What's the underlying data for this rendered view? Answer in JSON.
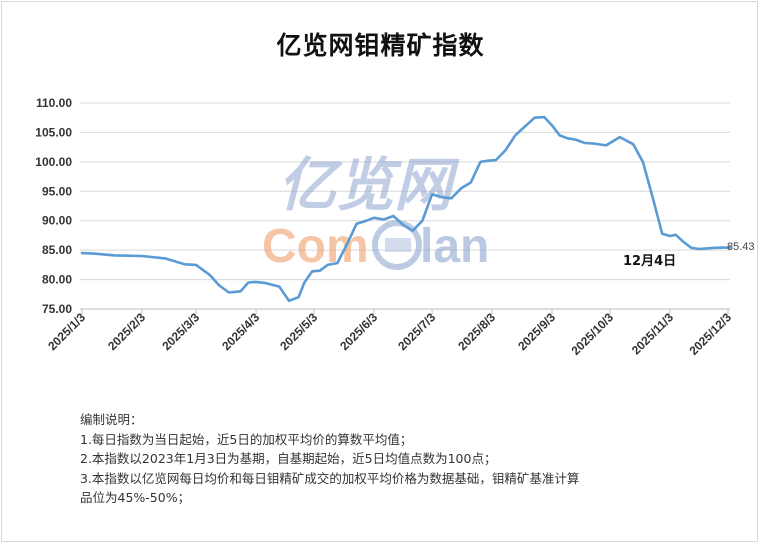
{
  "chart_data": {
    "type": "line",
    "title": "亿览网钼精矿指数",
    "ylim": [
      75,
      110
    ],
    "yticks": [
      "75.00",
      "80.00",
      "85.00",
      "90.00",
      "95.00",
      "100.00",
      "105.00",
      "110.00"
    ],
    "xticks": [
      "2025/1/3",
      "2025/2/3",
      "2025/3/3",
      "2025/4/3",
      "2025/5/3",
      "2025/6/3",
      "2025/7/3",
      "2025/8/3",
      "2025/9/3",
      "2025/10/3",
      "2025/11/3",
      "2025/12/3"
    ],
    "grid": true,
    "line_color": "#5b9bd5",
    "series": [
      {
        "x": [
          "2025-01-03",
          "2025-01-10",
          "2025-01-20",
          "2025-02-03",
          "2025-02-15",
          "2025-02-25",
          "2025-03-03",
          "2025-03-10",
          "2025-03-15",
          "2025-03-20",
          "2025-03-26",
          "2025-03-30",
          "2025-04-03",
          "2025-04-08",
          "2025-04-15",
          "2025-04-20",
          "2025-04-25",
          "2025-04-28",
          "2025-05-02",
          "2025-05-06",
          "2025-05-10",
          "2025-05-15",
          "2025-05-20",
          "2025-05-25",
          "2025-05-30",
          "2025-06-03",
          "2025-06-08",
          "2025-06-13",
          "2025-06-18",
          "2025-06-23",
          "2025-06-28",
          "2025-07-03",
          "2025-07-08",
          "2025-07-13",
          "2025-07-18",
          "2025-07-23",
          "2025-07-28",
          "2025-08-01",
          "2025-08-05",
          "2025-08-10",
          "2025-08-15",
          "2025-08-20",
          "2025-08-25",
          "2025-08-30",
          "2025-09-03",
          "2025-09-07",
          "2025-09-11",
          "2025-09-15",
          "2025-09-20",
          "2025-09-25",
          "2025-10-01",
          "2025-10-08",
          "2025-10-15",
          "2025-10-20",
          "2025-10-25",
          "2025-10-30",
          "2025-11-03",
          "2025-11-06",
          "2025-11-10",
          "2025-11-14",
          "2025-11-18",
          "2025-11-22",
          "2025-11-26",
          "2025-12-01",
          "2025-12-04"
        ],
        "values": [
          84.5,
          84.4,
          84.1,
          84.0,
          83.6,
          82.6,
          82.5,
          80.8,
          79.0,
          77.8,
          78.0,
          79.5,
          79.6,
          79.4,
          78.8,
          76.4,
          77.0,
          79.5,
          81.4,
          81.5,
          82.5,
          82.8,
          86.0,
          89.5,
          90.0,
          90.5,
          90.2,
          90.8,
          89.3,
          88.3,
          90.0,
          94.5,
          94.0,
          93.8,
          95.5,
          96.5,
          100.0,
          100.2,
          100.3,
          102.0,
          104.5,
          106.0,
          107.5,
          107.6,
          106.2,
          104.5,
          104.0,
          103.8,
          103.2,
          103.1,
          102.8,
          104.2,
          103.0,
          100.0,
          94.0,
          87.8,
          87.4,
          87.6,
          86.4,
          85.4,
          85.2,
          85.3,
          85.4,
          85.43,
          85.43
        ]
      }
    ],
    "annotations": [
      "85.43",
      "12月4日"
    ]
  },
  "watermark": {
    "cn": "亿览网",
    "en_left": "Com",
    "en_right": "lan"
  },
  "notes": {
    "heading": "编制说明：",
    "line1": "1.每日指数为当日起始，近5日的加权平均价的算数平均值；",
    "line2": "2.本指数以2023年1月3日为基期，自基期起始，近5日均值点数为100点；",
    "line3": "3.本指数以亿览网每日均价和每日钼精矿成交的加权平均价格为数据基础，钼精矿基准计算",
    "line4": "品位为45%-50%；"
  }
}
